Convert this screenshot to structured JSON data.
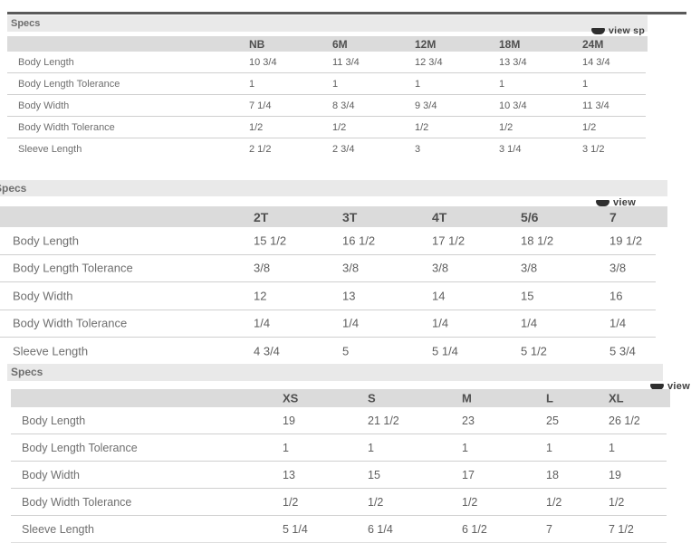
{
  "colors": {
    "section_header_bg": "#e9e9e9",
    "column_header_bg": "#dbdbdb",
    "row_divider": "#cfcfcf",
    "top_bar": "#5a5a5a",
    "label_text": "#6f6f6f",
    "value_text": "#5e5e5e",
    "header_text": "#4f4f4f",
    "view_link_text": "#3d3d3d"
  },
  "icons": {
    "view_icon": "eye-icon"
  },
  "tables": [
    {
      "section_title": "Specs",
      "view_link_label": "view sp",
      "columns": [
        "NB",
        "6M",
        "12M",
        "18M",
        "24M"
      ],
      "rows": [
        {
          "label": "Body Length",
          "values": [
            "10 3/4",
            "11 3/4",
            "12 3/4",
            "13 3/4",
            "14 3/4"
          ]
        },
        {
          "label": "Body Length Tolerance",
          "values": [
            "1",
            "1",
            "1",
            "1",
            "1"
          ]
        },
        {
          "label": "Body Width",
          "values": [
            "7 1/4",
            "8 3/4",
            "9 3/4",
            "10 3/4",
            "11 3/4"
          ]
        },
        {
          "label": "Body Width Tolerance",
          "values": [
            "1/2",
            "1/2",
            "1/2",
            "1/2",
            "1/2"
          ]
        },
        {
          "label": "Sleeve Length",
          "values": [
            "2 1/2",
            "2 3/4",
            "3",
            "3 1/4",
            "3 1/2"
          ]
        }
      ]
    },
    {
      "section_title": "Specs",
      "view_link_label": "view",
      "columns": [
        "2T",
        "3T",
        "4T",
        "5/6",
        "7"
      ],
      "rows": [
        {
          "label": "Body Length",
          "values": [
            "15 1/2",
            "16 1/2",
            "17 1/2",
            "18 1/2",
            "19 1/2"
          ]
        },
        {
          "label": "Body Length Tolerance",
          "values": [
            "3/8",
            "3/8",
            "3/8",
            "3/8",
            "3/8"
          ]
        },
        {
          "label": "Body Width",
          "values": [
            "12",
            "13",
            "14",
            "15",
            "16"
          ]
        },
        {
          "label": "Body Width Tolerance",
          "values": [
            "1/4",
            "1/4",
            "1/4",
            "1/4",
            "1/4"
          ]
        },
        {
          "label": "Sleeve Length",
          "values": [
            "4 3/4",
            "5",
            "5 1/4",
            "5 1/2",
            "5 3/4"
          ]
        }
      ]
    },
    {
      "section_title": "Specs",
      "view_link_label": "view",
      "columns": [
        "XS",
        "S",
        "M",
        "L",
        "XL"
      ],
      "rows": [
        {
          "label": "Body Length",
          "values": [
            "19",
            "21 1/2",
            "23",
            "25",
            "26 1/2"
          ]
        },
        {
          "label": "Body Length Tolerance",
          "values": [
            "1",
            "1",
            "1",
            "1",
            "1"
          ]
        },
        {
          "label": "Body Width",
          "values": [
            "13",
            "15",
            "17",
            "18",
            "19"
          ]
        },
        {
          "label": "Body Width Tolerance",
          "values": [
            "1/2",
            "1/2",
            "1/2",
            "1/2",
            "1/2"
          ]
        },
        {
          "label": "Sleeve Length",
          "values": [
            "5 1/4",
            "6 1/4",
            "6 1/2",
            "7",
            "7 1/2"
          ]
        }
      ]
    }
  ]
}
